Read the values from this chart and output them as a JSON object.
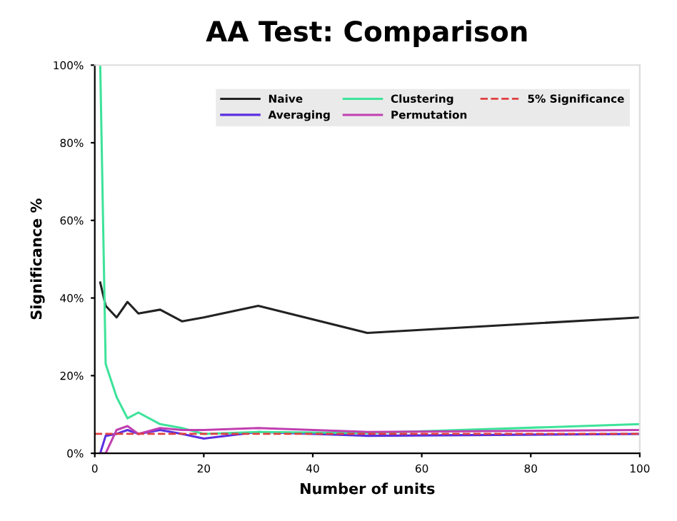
{
  "chart_data": {
    "type": "line",
    "title": "AA Test: Comparison",
    "xlabel": "Number of units",
    "ylabel": "Significance %",
    "x": [
      1,
      2,
      4,
      6,
      8,
      12,
      16,
      20,
      30,
      50,
      100
    ],
    "series": [
      {
        "name": "Naive",
        "color": "#222222",
        "values": [
          44,
          38,
          35,
          39,
          36,
          37,
          34,
          35,
          38,
          31,
          35
        ]
      },
      {
        "name": "Averaging",
        "color": "#5a2ee0",
        "values": [
          0,
          4.5,
          5,
          6,
          5,
          6,
          5,
          3.8,
          5.5,
          4.5,
          5
        ]
      },
      {
        "name": "Clustering",
        "color": "#3ee39a",
        "values": [
          100,
          23,
          14.5,
          9,
          10.5,
          7.5,
          6.5,
          5,
          5.5,
          5.2,
          7.5
        ]
      },
      {
        "name": "Permutation",
        "color": "#c03fb0",
        "values": [
          0,
          0,
          6,
          7,
          5,
          6.5,
          6,
          6,
          6.5,
          5.5,
          6
        ]
      }
    ],
    "ref_lines": [
      {
        "axis": "y",
        "value": 5,
        "label": "5% Significance",
        "color": "#e04040",
        "line_style": "dashed"
      }
    ],
    "xlim": [
      0,
      100
    ],
    "xticks": [
      0,
      20,
      40,
      60,
      80,
      100
    ],
    "ylim": [
      0,
      100
    ],
    "yticks": [
      {
        "value": 0,
        "label": "0%"
      },
      {
        "value": 20,
        "label": "20%"
      },
      {
        "value": 40,
        "label": "40%"
      },
      {
        "value": 60,
        "label": "60%"
      },
      {
        "value": 80,
        "label": "80%"
      },
      {
        "value": 100,
        "label": "100%"
      }
    ],
    "grid": false,
    "legend": "top right",
    "marker": "none",
    "line_style": "solid"
  }
}
